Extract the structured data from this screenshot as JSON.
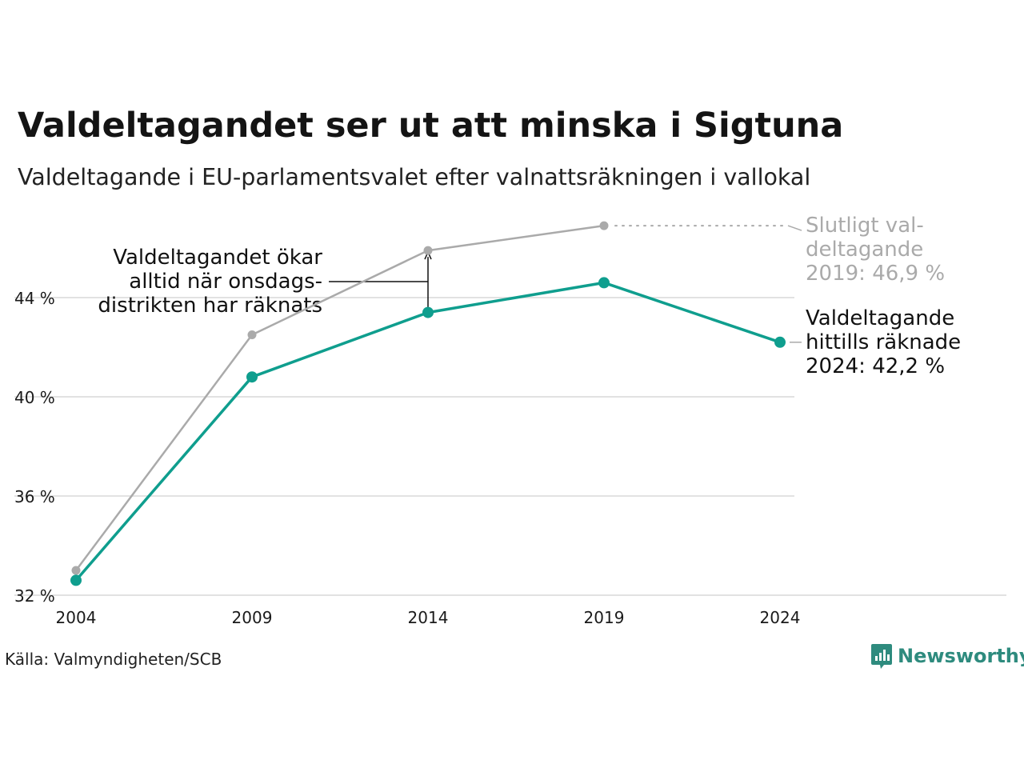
{
  "header": {
    "title": "Valdeltagandet ser ut att minska i Sigtuna",
    "subtitle": "Valdeltagande i EU-parlamentsvalet efter valnattsräkningen i vallokal"
  },
  "chart_data": {
    "type": "line",
    "title": "Valdeltagandet ser ut att minska i Sigtuna",
    "subtitle": "Valdeltagande i EU-parlamentsvalet efter valnattsräkningen i vallokal",
    "x": [
      2004,
      2009,
      2014,
      2019,
      2024
    ],
    "x_tick_labels": [
      "2004",
      "2009",
      "2014",
      "2019",
      "2024"
    ],
    "y_ticks": [
      32,
      36,
      40,
      44
    ],
    "y_tick_labels": [
      "32 %",
      "36 %",
      "40 %",
      "44 %"
    ],
    "ylim": [
      32,
      47
    ],
    "grid": true,
    "series": [
      {
        "key": "final",
        "color": "#aaaaaa",
        "x": [
          2004,
          2009,
          2014,
          2019
        ],
        "values": [
          33.0,
          42.5,
          45.9,
          46.9
        ]
      },
      {
        "key": "counted",
        "color": "#0f9e8e",
        "x": [
          2004,
          2009,
          2014,
          2019,
          2024
        ],
        "values": [
          32.6,
          40.8,
          43.4,
          44.6,
          42.2
        ]
      }
    ],
    "annotations": {
      "onsdag": [
        "Valdeltagandet ökar",
        "alltid när onsdags-",
        "distrikten har räknats"
      ],
      "final_label": [
        "Slutligt val-",
        "deltagande",
        "2019: 46,9 %"
      ],
      "counted_label": [
        "Valdeltagande",
        "hittills räknade",
        "2024: 42,2 %"
      ]
    }
  },
  "footer": {
    "source": "Källa: Valmyndigheten/SCB",
    "brand": "Newsworthy"
  },
  "colors": {
    "accent": "#0f9e8e",
    "final_line": "#aaaaaa",
    "grid": "#e2e2e2",
    "brand": "#2e8b7e"
  }
}
